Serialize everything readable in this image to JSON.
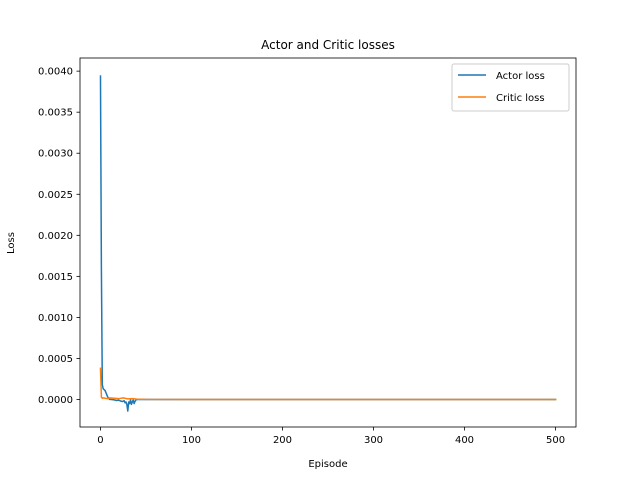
{
  "chart_data": {
    "type": "line",
    "title": "Actor and Critic losses",
    "xlabel": "Episode",
    "ylabel": "Loss",
    "xlim": [
      -22.5,
      522.5
    ],
    "ylim": [
      -0.000335,
      0.00416
    ],
    "xticks": [
      0,
      100,
      200,
      300,
      400,
      500
    ],
    "yticks": [
      0.0,
      0.0005,
      0.001,
      0.0015,
      0.002,
      0.0025,
      0.003,
      0.0035,
      0.004
    ],
    "ytick_labels": [
      "0.0000",
      "0.0005",
      "0.0010",
      "0.0015",
      "0.0020",
      "0.0025",
      "0.0030",
      "0.0035",
      "0.0040"
    ],
    "legend_position": "upper-right",
    "grid": false,
    "series": [
      {
        "name": "Actor loss",
        "color": "#1f77b4",
        "x": [
          0,
          1,
          2,
          3,
          5,
          8,
          10,
          12,
          15,
          18,
          20,
          22,
          24,
          26,
          27,
          28,
          29,
          30,
          31,
          32,
          33,
          34,
          35,
          36,
          37,
          38,
          39,
          40,
          45,
          50,
          100,
          200,
          300,
          400,
          500
        ],
        "y": [
          0.00394,
          0.0016,
          0.00018,
          0.00013,
          0.00011,
          3e-05,
          2e-06,
          0.0,
          -5e-06,
          -1.2e-05,
          -8e-06,
          -1.8e-05,
          -2.5e-05,
          -1.5e-05,
          -4e-05,
          -3e-05,
          -6e-05,
          -0.00014,
          -3e-05,
          -5e-05,
          -5e-06,
          -6e-05,
          -3e-05,
          -5e-06,
          -5e-05,
          -2e-05,
          -5e-06,
          0.0,
          0.0,
          0.0,
          0.0,
          0.0,
          0.0,
          0.0,
          0.0
        ]
      },
      {
        "name": "Critic loss",
        "color": "#ff7f0e",
        "x": [
          0,
          1,
          2,
          3,
          5,
          8,
          10,
          15,
          20,
          25,
          28,
          30,
          35,
          40,
          50,
          100,
          200,
          300,
          400,
          500
        ],
        "y": [
          0.00038,
          3e-05,
          1.5e-05,
          2e-05,
          1.5e-05,
          1e-05,
          2e-05,
          1.5e-05,
          1e-05,
          2e-05,
          1.2e-05,
          8e-06,
          1e-05,
          5e-06,
          2e-06,
          0.0,
          0.0,
          0.0,
          0.0,
          0.0
        ]
      }
    ]
  }
}
